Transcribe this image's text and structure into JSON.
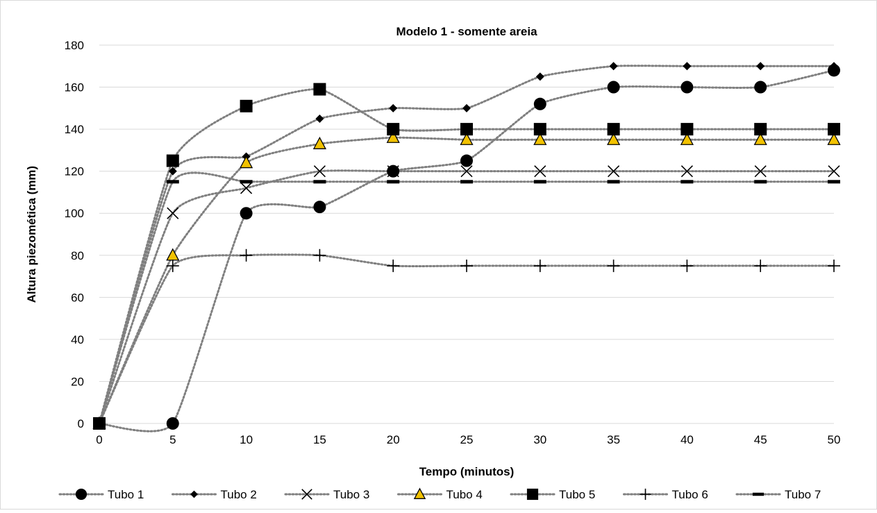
{
  "chart_data": {
    "type": "line",
    "title": "Modelo 1 - somente areia",
    "xlabel": "Tempo (minutos)",
    "ylabel": "Altura piezomética (mm)",
    "x": [
      0,
      5,
      10,
      15,
      20,
      25,
      30,
      35,
      40,
      45,
      50
    ],
    "xticks": [
      "0",
      "5",
      "10",
      "15",
      "20",
      "25",
      "30",
      "35",
      "40",
      "45",
      "50"
    ],
    "yticks": [
      "0",
      "20",
      "40",
      "60",
      "80",
      "100",
      "120",
      "140",
      "160",
      "180"
    ],
    "xlim": [
      0,
      50
    ],
    "ylim": [
      0,
      180
    ],
    "grid": "horizontal",
    "legend_position": "bottom",
    "line_style": "dotted-smoothed",
    "line_color": "#7f7f7f",
    "series": [
      {
        "name": "Tubo 1",
        "marker": "circle",
        "values": [
          0,
          0,
          100,
          103,
          120,
          125,
          152,
          160,
          160,
          160,
          168
        ]
      },
      {
        "name": "Tubo 2",
        "marker": "diamond",
        "values": [
          0,
          120,
          127,
          145,
          150,
          150,
          165,
          170,
          170,
          170,
          170
        ]
      },
      {
        "name": "Tubo 3",
        "marker": "x",
        "values": [
          0,
          100,
          112,
          120,
          120,
          120,
          120,
          120,
          120,
          120,
          120
        ]
      },
      {
        "name": "Tubo 4",
        "marker": "triangle",
        "marker_fill": "#f2c200",
        "values": [
          0,
          80,
          124,
          133,
          136,
          135,
          135,
          135,
          135,
          135,
          135
        ]
      },
      {
        "name": "Tubo 5",
        "marker": "square",
        "values": [
          0,
          125,
          151,
          159,
          140,
          140,
          140,
          140,
          140,
          140,
          140
        ]
      },
      {
        "name": "Tubo 6",
        "marker": "plus",
        "values": [
          0,
          75,
          80,
          80,
          75,
          75,
          75,
          75,
          75,
          75,
          75
        ]
      },
      {
        "name": "Tubo 7",
        "marker": "dash",
        "values": [
          0,
          115,
          115,
          115,
          115,
          115,
          115,
          115,
          115,
          115,
          115
        ]
      }
    ]
  }
}
